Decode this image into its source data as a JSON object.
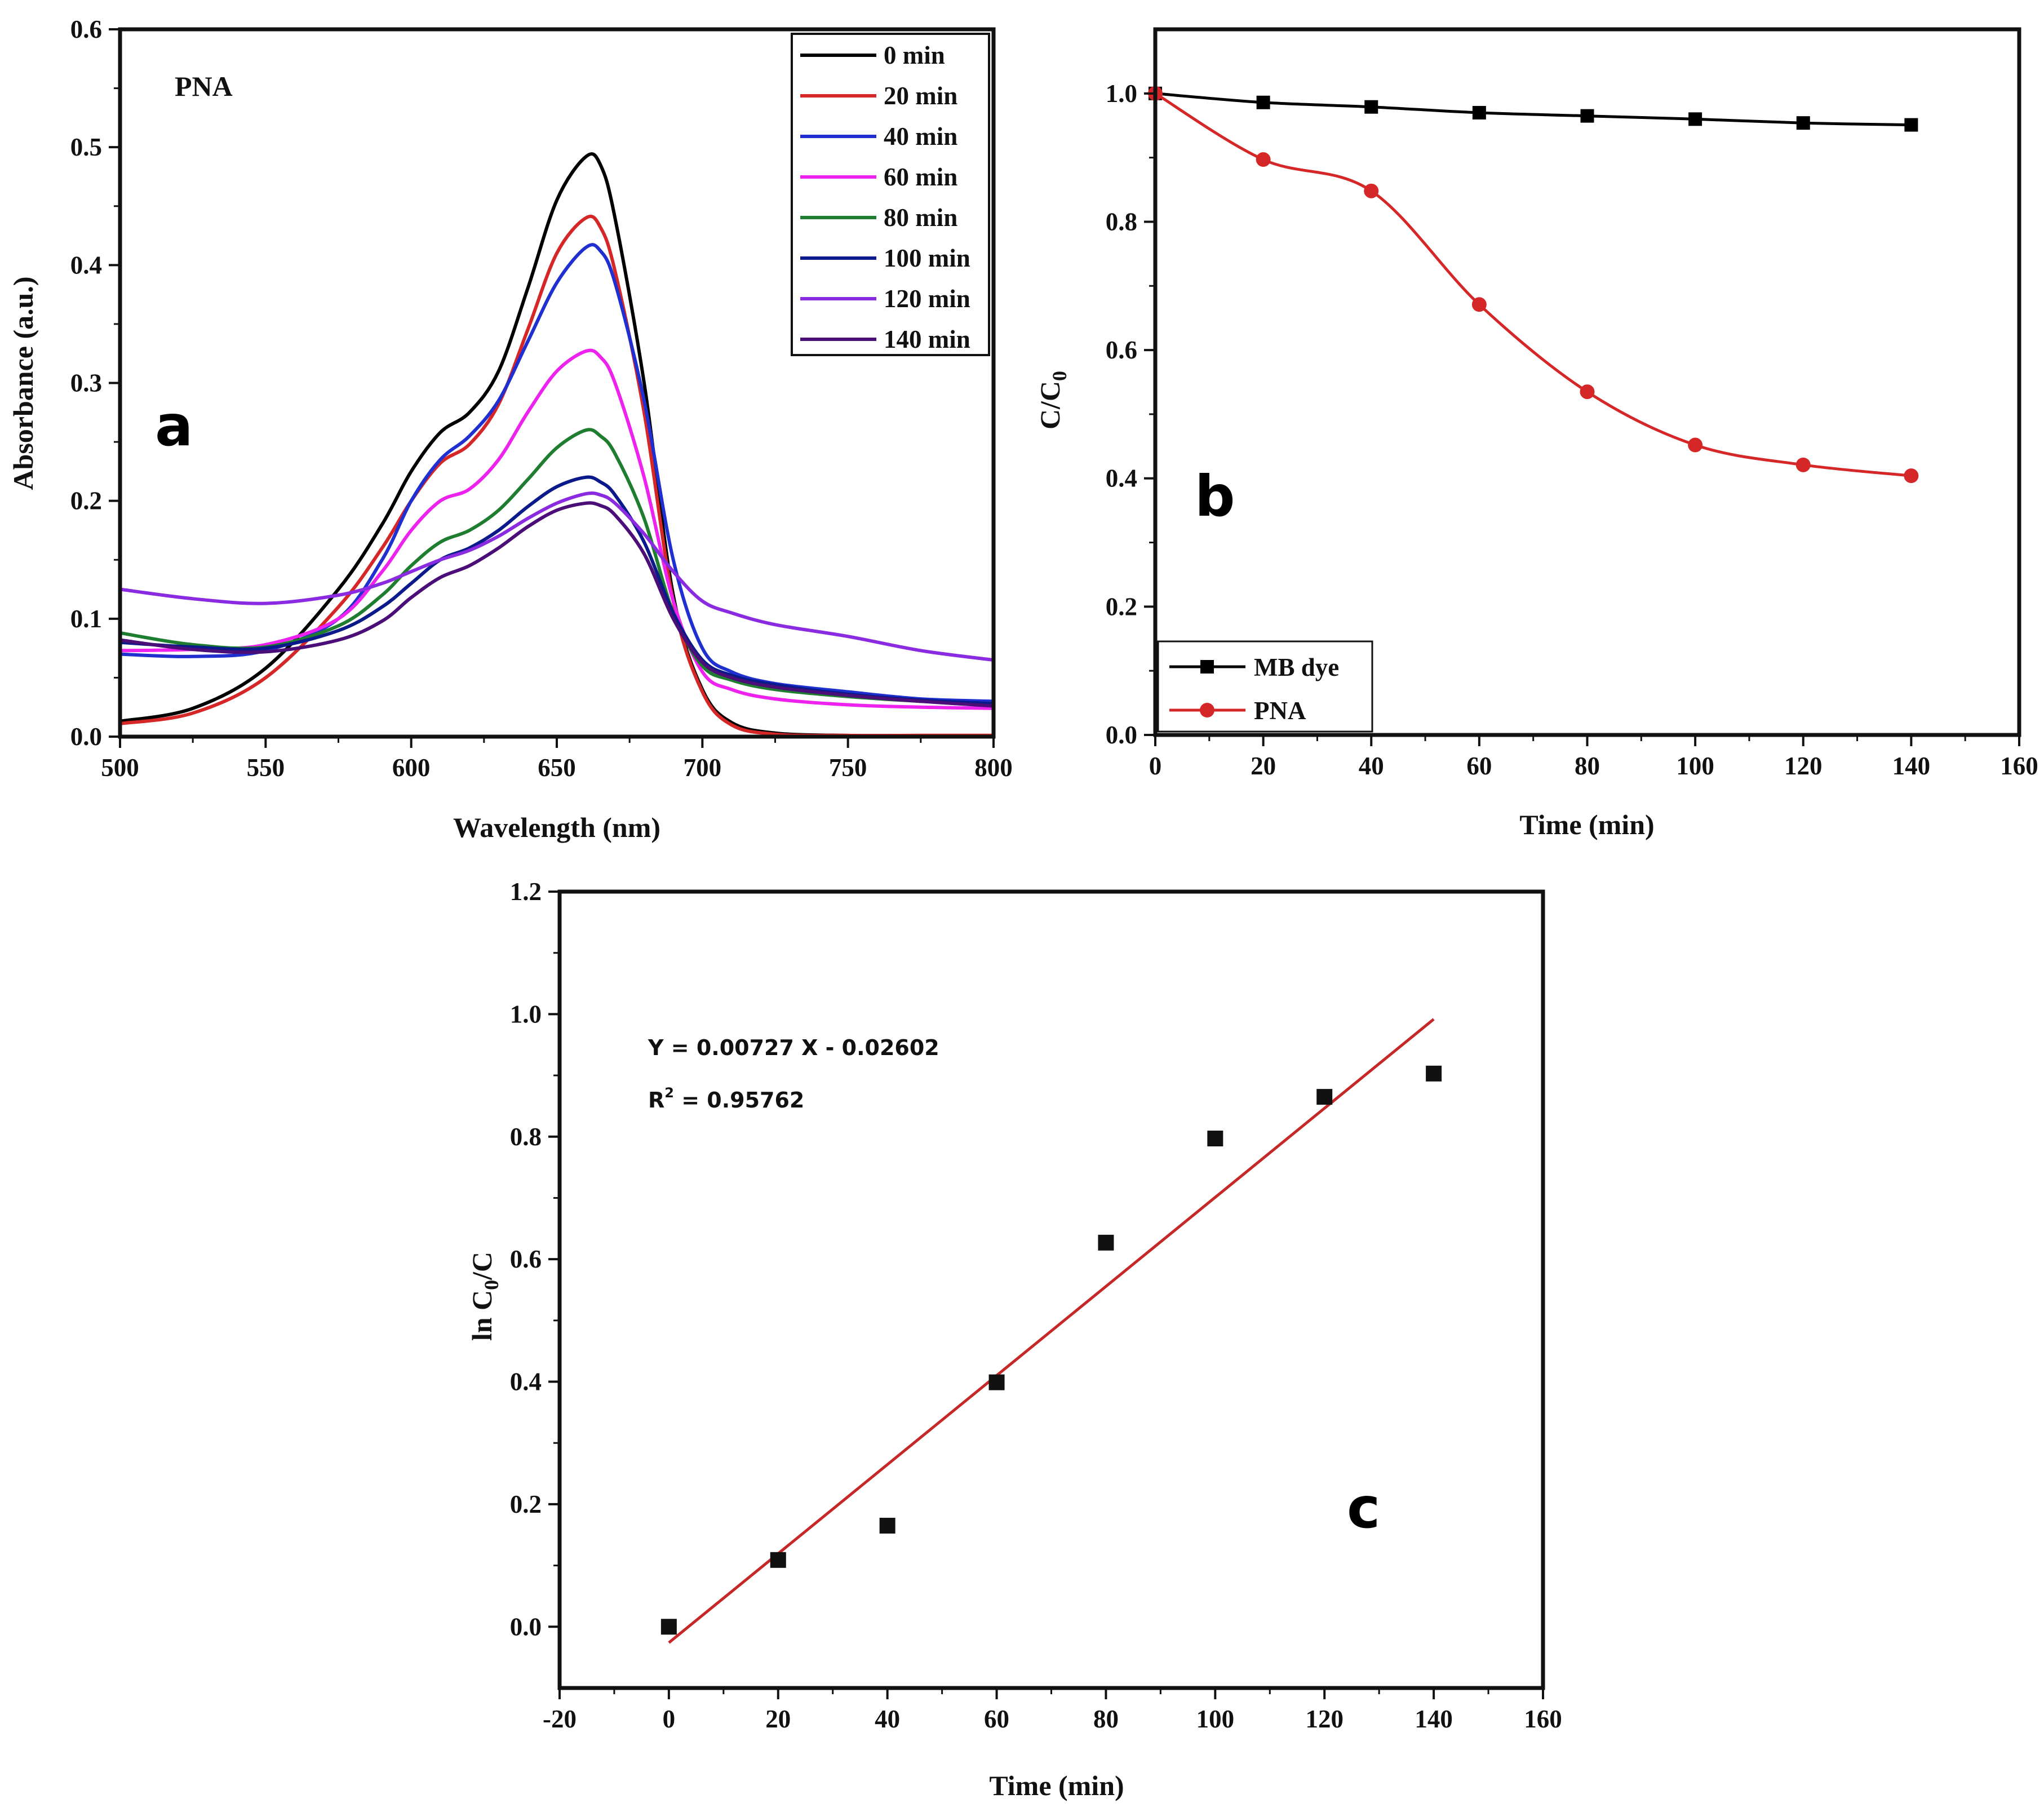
{
  "chart_data": [
    {
      "type": "line",
      "panel_label": "a",
      "annotation": "PNA",
      "xlabel": "Wavelength (nm)",
      "ylabel": "Absorbance (a.u.)",
      "xlim": [
        500,
        800
      ],
      "ylim": [
        0,
        0.6
      ],
      "xticks": [
        "500",
        "550",
        "600",
        "650",
        "700",
        "750",
        "800"
      ],
      "yticks": [
        "0.0",
        "0.1",
        "0.2",
        "0.3",
        "0.4",
        "0.5",
        "0.6"
      ],
      "legend_position": "top-right",
      "x": [
        500,
        525,
        550,
        575,
        590,
        600,
        610,
        620,
        630,
        640,
        650,
        660,
        665,
        670,
        680,
        690,
        700,
        710,
        725,
        750,
        775,
        800
      ],
      "series": [
        {
          "name": "0 min",
          "color": "#000000",
          "values": [
            0.013,
            0.024,
            0.058,
            0.125,
            0.18,
            0.225,
            0.258,
            0.275,
            0.31,
            0.38,
            0.455,
            0.492,
            0.485,
            0.44,
            0.3,
            0.12,
            0.04,
            0.012,
            0.003,
            0.001,
            0.001,
            0.001
          ]
        },
        {
          "name": "20 min",
          "color": "#d62728",
          "values": [
            0.011,
            0.02,
            0.05,
            0.11,
            0.16,
            0.2,
            0.232,
            0.248,
            0.282,
            0.345,
            0.41,
            0.44,
            0.432,
            0.395,
            0.275,
            0.115,
            0.038,
            0.01,
            0.002,
            0.001,
            0.001,
            0.001
          ]
        },
        {
          "name": "40 min",
          "color": "#1f2fd0",
          "values": [
            0.07,
            0.068,
            0.073,
            0.1,
            0.15,
            0.2,
            0.235,
            0.255,
            0.285,
            0.335,
            0.385,
            0.415,
            0.412,
            0.385,
            0.285,
            0.15,
            0.075,
            0.055,
            0.045,
            0.038,
            0.032,
            0.03
          ]
        },
        {
          "name": "60 min",
          "color": "#ee22ee",
          "values": [
            0.073,
            0.074,
            0.078,
            0.1,
            0.14,
            0.175,
            0.2,
            0.21,
            0.235,
            0.275,
            0.31,
            0.327,
            0.322,
            0.3,
            0.22,
            0.115,
            0.055,
            0.04,
            0.032,
            0.027,
            0.025,
            0.024
          ]
        },
        {
          "name": "80 min",
          "color": "#1e7d2e",
          "values": [
            0.088,
            0.078,
            0.076,
            0.094,
            0.12,
            0.145,
            0.165,
            0.175,
            0.192,
            0.218,
            0.245,
            0.26,
            0.255,
            0.24,
            0.185,
            0.105,
            0.06,
            0.048,
            0.04,
            0.034,
            0.03,
            0.028
          ]
        },
        {
          "name": "100 min",
          "color": "#0a1a8a",
          "values": [
            0.08,
            0.076,
            0.075,
            0.09,
            0.11,
            0.13,
            0.15,
            0.16,
            0.175,
            0.195,
            0.212,
            0.22,
            0.216,
            0.205,
            0.165,
            0.105,
            0.065,
            0.052,
            0.044,
            0.036,
            0.031,
            0.028
          ]
        },
        {
          "name": "120 min",
          "color": "#8a2be2",
          "values": [
            0.125,
            0.117,
            0.113,
            0.12,
            0.13,
            0.14,
            0.15,
            0.158,
            0.17,
            0.185,
            0.198,
            0.206,
            0.205,
            0.198,
            0.172,
            0.14,
            0.115,
            0.105,
            0.095,
            0.085,
            0.073,
            0.065
          ]
        },
        {
          "name": "140 min",
          "color": "#4b0d78",
          "values": [
            0.082,
            0.074,
            0.072,
            0.082,
            0.098,
            0.118,
            0.135,
            0.145,
            0.16,
            0.178,
            0.192,
            0.198,
            0.196,
            0.188,
            0.155,
            0.1,
            0.063,
            0.05,
            0.042,
            0.035,
            0.03,
            0.026
          ]
        }
      ]
    },
    {
      "type": "line",
      "panel_label": "b",
      "xlabel": "Time (min)",
      "ylabel": "C/C",
      "ylabel_subscript": "0",
      "xlim": [
        0,
        160
      ],
      "ylim": [
        0,
        1.1
      ],
      "xticks": [
        "0",
        "20",
        "40",
        "60",
        "80",
        "100",
        "120",
        "140",
        "160"
      ],
      "yticks": [
        "0.0",
        "0.2",
        "0.4",
        "0.6",
        "0.8",
        "1.0"
      ],
      "legend_position": "bottom-left",
      "x": [
        0,
        20,
        40,
        60,
        80,
        100,
        120,
        140
      ],
      "series": [
        {
          "name": "MB dye",
          "color": "#000000",
          "marker": "square",
          "values": [
            1.0,
            0.986,
            0.979,
            0.97,
            0.965,
            0.96,
            0.954,
            0.951
          ]
        },
        {
          "name": "PNA",
          "color": "#d62728",
          "marker": "circle",
          "values": [
            1.0,
            0.897,
            0.848,
            0.671,
            0.535,
            0.452,
            0.421,
            0.404
          ]
        }
      ]
    },
    {
      "type": "scatter",
      "panel_label": "c",
      "xlabel": "Time (min)",
      "ylabel": "ln C",
      "ylabel_subscript": "0",
      "ylabel_tail": "/C",
      "xlim": [
        -20,
        160
      ],
      "ylim": [
        -0.1,
        1.2
      ],
      "xticks": [
        "-20",
        "0",
        "20",
        "40",
        "60",
        "80",
        "100",
        "120",
        "140",
        "160"
      ],
      "yticks": [
        "0.0",
        "0.2",
        "0.4",
        "0.6",
        "0.8",
        "1.0",
        "1.2"
      ],
      "equation": "Y = 0.00727 X - 0.02602",
      "r2_prefix": "R",
      "r2_superscript": "2",
      "r2_value": " = 0.95762",
      "fit": {
        "slope": 0.00727,
        "intercept": -0.02602,
        "x_range": [
          0,
          140
        ],
        "color": "#c62828"
      },
      "x": [
        0,
        20,
        40,
        60,
        80,
        100,
        120,
        140
      ],
      "values": [
        0.0,
        0.109,
        0.165,
        0.399,
        0.627,
        0.797,
        0.865,
        0.903
      ]
    }
  ]
}
